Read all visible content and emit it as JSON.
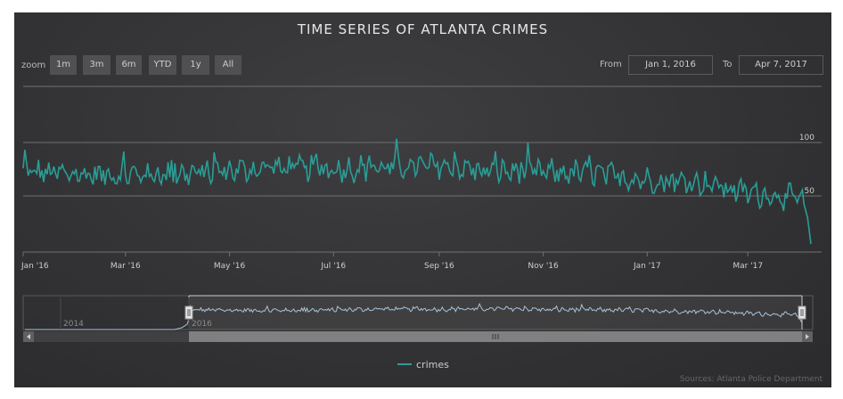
{
  "title": "TIME SERIES OF ATLANTA CRIMES",
  "range_selector": {
    "zoom_label": "zoom",
    "buttons": [
      "1m",
      "3m",
      "6m",
      "YTD",
      "1y",
      "All"
    ],
    "from_label": "From",
    "from_value": "Jan 1, 2016",
    "to_label": "To",
    "to_value": "Apr 7, 2017"
  },
  "navigator": {
    "labels": [
      "2014",
      "2016"
    ]
  },
  "credits": "Sources: Atlanta Police Department",
  "colors": {
    "series": "#2a9d96",
    "navigator_series": "#a9c0d6",
    "gridline": "#707073",
    "background": "#333335",
    "text": "#e0e0e3"
  },
  "chart_data": {
    "type": "line",
    "title": "TIME SERIES OF ATLANTA CRIMES",
    "x_start": "2016-01-01",
    "x_end": "2017-04-07",
    "x_ticks": [
      "Jan '16",
      "Mar '16",
      "May '16",
      "Jul '16",
      "Sep '16",
      "Nov '16",
      "Jan '17",
      "Mar '17"
    ],
    "y_ticks": [
      50,
      100
    ],
    "ylim": [
      0,
      110
    ],
    "grid": true,
    "legend_position": "bottom-center",
    "series": [
      {
        "name": "crimes",
        "anchors": [
          {
            "date": "2016-01-01",
            "value": 73
          },
          {
            "date": "2016-02-01",
            "value": 70
          },
          {
            "date": "2016-03-01",
            "value": 70
          },
          {
            "date": "2016-04-01",
            "value": 70
          },
          {
            "date": "2016-05-01",
            "value": 74
          },
          {
            "date": "2016-06-01",
            "value": 76
          },
          {
            "date": "2016-07-01",
            "value": 75
          },
          {
            "date": "2016-08-01",
            "value": 77
          },
          {
            "date": "2016-09-01",
            "value": 78
          },
          {
            "date": "2016-10-01",
            "value": 73
          },
          {
            "date": "2016-11-01",
            "value": 72
          },
          {
            "date": "2016-12-01",
            "value": 71
          },
          {
            "date": "2017-01-01",
            "value": 65
          },
          {
            "date": "2017-02-01",
            "value": 63
          },
          {
            "date": "2017-03-01",
            "value": 53
          },
          {
            "date": "2017-03-25",
            "value": 49
          },
          {
            "date": "2017-04-01",
            "value": 47
          },
          {
            "date": "2017-04-05",
            "value": 30
          },
          {
            "date": "2017-04-07",
            "value": 5
          }
        ]
      }
    ]
  }
}
